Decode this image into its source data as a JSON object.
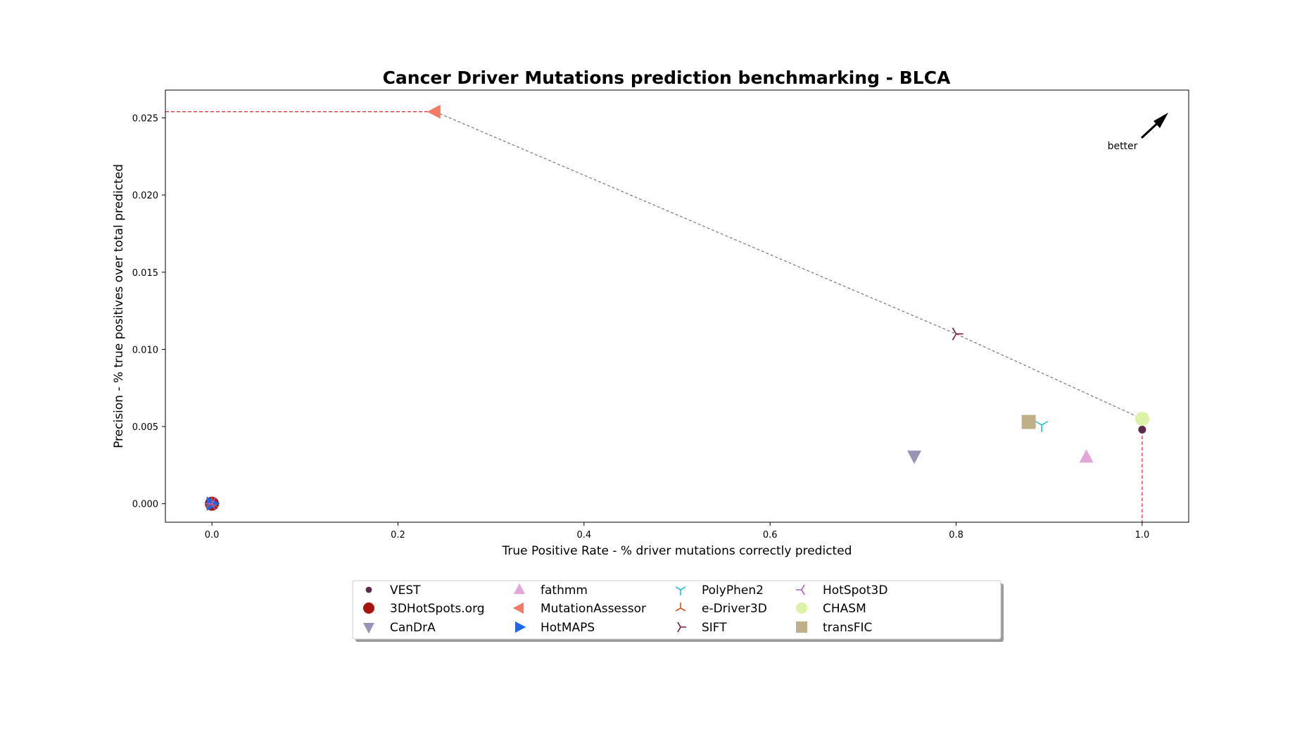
{
  "chart_data": {
    "type": "scatter",
    "title": "Cancer Driver Mutations prediction benchmarking - BLCA",
    "xlabel": "True Positive Rate - % driver mutations correctly predicted",
    "ylabel": "Precision - % true positives over total predicted",
    "xlim": [
      -0.05,
      1.05
    ],
    "ylim": [
      -0.0012,
      0.0268
    ],
    "xticks": [
      0.0,
      0.2,
      0.4,
      0.6,
      0.8,
      1.0
    ],
    "xtick_labels": [
      "0.0",
      "0.2",
      "0.4",
      "0.6",
      "0.8",
      "1.0"
    ],
    "yticks": [
      0.0,
      0.005,
      0.01,
      0.015,
      0.02,
      0.025
    ],
    "ytick_labels": [
      "0.000",
      "0.005",
      "0.010",
      "0.015",
      "0.020",
      "0.025"
    ],
    "grid": false,
    "legend_position": "bottom-center",
    "annotation": "better",
    "series": [
      {
        "name": "VEST",
        "x": 1.0,
        "y": 0.0048,
        "marker": "circle-small",
        "color": "#5c2a4a"
      },
      {
        "name": "3DHotSpots.org",
        "x": 0.0,
        "y": 0.0,
        "marker": "circle",
        "color": "#a8130f"
      },
      {
        "name": "CanDrA",
        "x": 0.755,
        "y": 0.0031,
        "marker": "triangle-down",
        "color": "#9a93b5"
      },
      {
        "name": "fathmm",
        "x": 0.94,
        "y": 0.003,
        "marker": "triangle-up",
        "color": "#e4a6d8"
      },
      {
        "name": "MutationAssessor",
        "x": 0.24,
        "y": 0.0254,
        "marker": "triangle-left",
        "color": "#f47a66"
      },
      {
        "name": "HotMAPS",
        "x": 0.0,
        "y": 0.0,
        "marker": "triangle-right",
        "color": "#1e66e8"
      },
      {
        "name": "PolyPhen2",
        "x": 0.892,
        "y": 0.0051,
        "marker": "tri-down",
        "color": "#25c4d0"
      },
      {
        "name": "e-Driver3D",
        "x": 0.0,
        "y": 0.0,
        "marker": "tri-up",
        "color": "#d8521c"
      },
      {
        "name": "SIFT",
        "x": 0.8,
        "y": 0.011,
        "marker": "tri-left",
        "color": "#7a1838"
      },
      {
        "name": "HotSpot3D",
        "x": 0.0,
        "y": 0.0,
        "marker": "tri-right",
        "color": "#b657d0"
      },
      {
        "name": "CHASM",
        "x": 1.0,
        "y": 0.0055,
        "marker": "circle",
        "color": "#dcf3a6"
      },
      {
        "name": "transFIC",
        "x": 0.878,
        "y": 0.0053,
        "marker": "square",
        "color": "#bfb08a"
      }
    ],
    "pareto_frontier": [
      [
        0.24,
        0.0254
      ],
      [
        0.8,
        0.011
      ],
      [
        1.0,
        0.0055
      ]
    ],
    "reference_lines": [
      {
        "from": [
          -0.05,
          0.0254
        ],
        "to": [
          0.24,
          0.0254
        ],
        "color": "#e8322e"
      },
      {
        "from": [
          1.0,
          0.0055
        ],
        "to": [
          1.0,
          -0.0012
        ],
        "color": "#e8322e"
      }
    ]
  }
}
